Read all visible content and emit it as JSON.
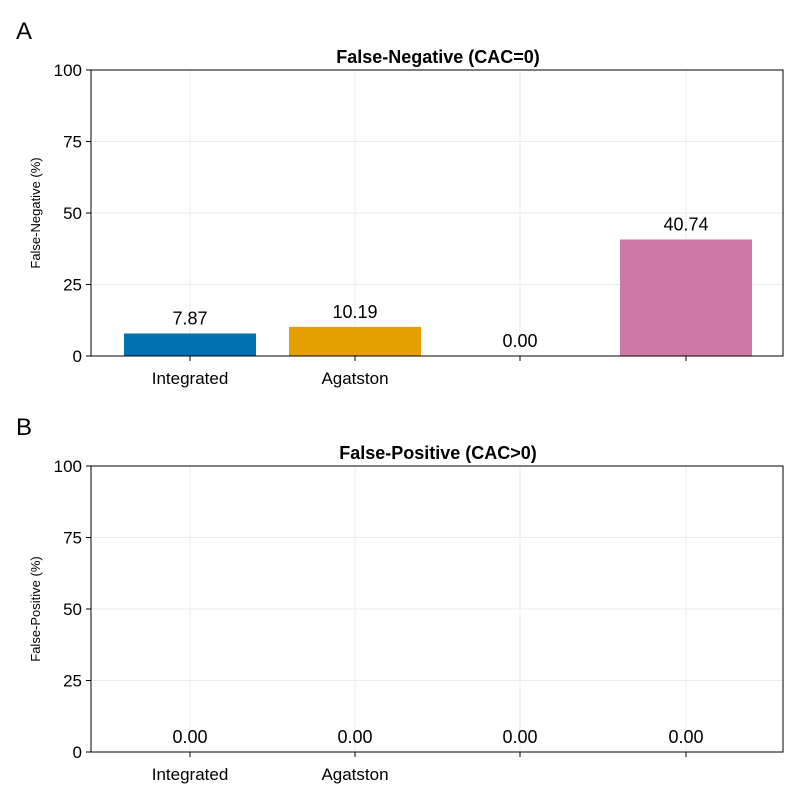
{
  "chart_data": [
    {
      "panel_label": "A",
      "type": "bar",
      "title": "False-Negative (CAC=0)",
      "xlabel": "",
      "ylabel": "False-Negative (%)",
      "ylim": [
        0,
        100
      ],
      "yticks": [
        0,
        25,
        50,
        75,
        100
      ],
      "grid": true,
      "categories": [
        "Integrated",
        "Agatston",
        "",
        ""
      ],
      "values": [
        7.87,
        10.19,
        0.0,
        40.74
      ],
      "value_labels": [
        "7.87",
        "10.19",
        "0.00",
        "40.74"
      ],
      "colors": [
        "#0072b2",
        "#e69f00",
        "#009e73",
        "#cc79a7"
      ]
    },
    {
      "panel_label": "B",
      "type": "bar",
      "title": "False-Positive (CAC>0)",
      "xlabel": "",
      "ylabel": "False-Positive (%)",
      "ylim": [
        0,
        100
      ],
      "yticks": [
        0,
        25,
        50,
        75,
        100
      ],
      "grid": true,
      "categories": [
        "Integrated",
        "Agatston",
        "",
        ""
      ],
      "values": [
        0.0,
        0.0,
        0.0,
        0.0
      ],
      "value_labels": [
        "0.00",
        "0.00",
        "0.00",
        "0.00"
      ],
      "colors": [
        "#0072b2",
        "#e69f00",
        "#009e73",
        "#cc79a7"
      ]
    }
  ]
}
